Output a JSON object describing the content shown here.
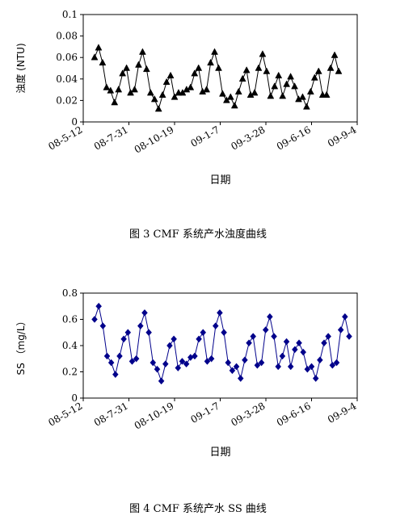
{
  "chart_data": [
    {
      "type": "line",
      "marker": "triangle",
      "color": "#000000",
      "ylabel": "浊度 (NTU)",
      "xlabel": "日期",
      "ylim": [
        0,
        0.1
      ],
      "yticks": [
        "0",
        "0.02",
        "0.04",
        "0.06",
        "0.08",
        "0.1"
      ],
      "xticks": [
        "08-5-12",
        "08-7-31",
        "08-10-19",
        "09-1-7",
        "09-3-28",
        "09-6-16",
        "09-9-4"
      ],
      "caption": "图 3  CMF 系统产水浊度曲线",
      "values": [
        0.06,
        0.069,
        0.055,
        0.032,
        0.029,
        0.018,
        0.03,
        0.045,
        0.05,
        0.027,
        0.03,
        0.053,
        0.065,
        0.049,
        0.027,
        0.021,
        0.012,
        0.025,
        0.037,
        0.043,
        0.023,
        0.027,
        0.027,
        0.03,
        0.032,
        0.045,
        0.05,
        0.028,
        0.03,
        0.055,
        0.065,
        0.05,
        0.026,
        0.02,
        0.023,
        0.015,
        0.028,
        0.04,
        0.048,
        0.025,
        0.027,
        0.05,
        0.063,
        0.047,
        0.024,
        0.033,
        0.043,
        0.024,
        0.035,
        0.042,
        0.033,
        0.021,
        0.023,
        0.014,
        0.028,
        0.041,
        0.047,
        0.025,
        0.025,
        0.05,
        0.062,
        0.047
      ]
    },
    {
      "type": "line",
      "marker": "diamond",
      "color": "#00008b",
      "ylabel": "SS （mg/L）",
      "xlabel": "日期",
      "ylim": [
        0,
        0.8
      ],
      "yticks": [
        "0",
        "0.2",
        "0.4",
        "0.6",
        "0.8"
      ],
      "xticks": [
        "08-5-12",
        "08-7-31",
        "08-10-19",
        "09-1-7",
        "09-3-28",
        "09-6-16",
        "09-9-4"
      ],
      "caption": "图 4  CMF 系统产水 SS 曲线",
      "values": [
        0.6,
        0.7,
        0.55,
        0.32,
        0.27,
        0.18,
        0.32,
        0.45,
        0.5,
        0.28,
        0.3,
        0.55,
        0.65,
        0.5,
        0.27,
        0.22,
        0.13,
        0.26,
        0.4,
        0.45,
        0.23,
        0.28,
        0.26,
        0.31,
        0.32,
        0.45,
        0.5,
        0.28,
        0.3,
        0.55,
        0.65,
        0.5,
        0.27,
        0.21,
        0.24,
        0.15,
        0.29,
        0.42,
        0.47,
        0.25,
        0.27,
        0.52,
        0.62,
        0.47,
        0.24,
        0.32,
        0.43,
        0.24,
        0.37,
        0.42,
        0.35,
        0.22,
        0.24,
        0.15,
        0.29,
        0.42,
        0.47,
        0.25,
        0.27,
        0.52,
        0.62,
        0.47
      ]
    }
  ]
}
